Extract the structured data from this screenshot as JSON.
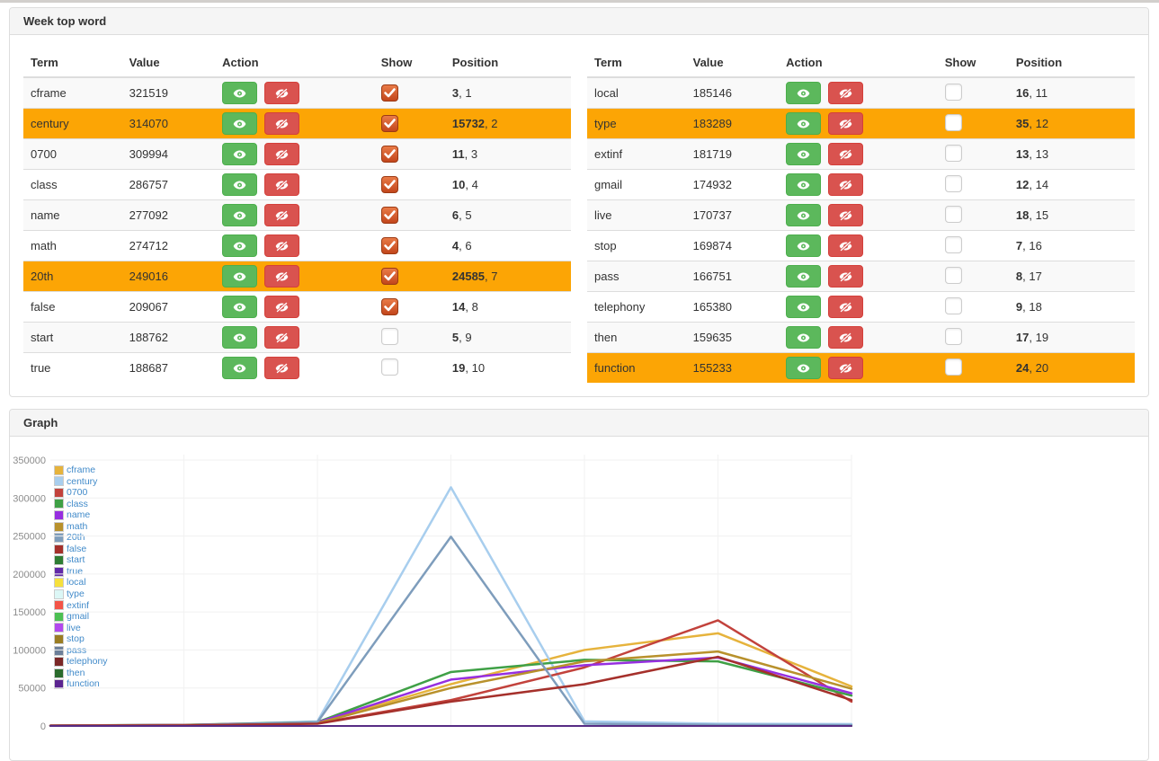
{
  "word_panel": {
    "title": "Week top word",
    "columns": {
      "term": "Term",
      "value": "Value",
      "action": "Action",
      "show": "Show",
      "position": "Position"
    },
    "highlight_color": "#fca505",
    "tables": [
      {
        "rows": [
          {
            "term": "cframe",
            "value": "321519",
            "checked": true,
            "highlight": false,
            "pos_bold": "3",
            "pos_rest": ", 1"
          },
          {
            "term": "century",
            "value": "314070",
            "checked": true,
            "highlight": true,
            "pos_bold": "15732",
            "pos_rest": ", 2"
          },
          {
            "term": "0700",
            "value": "309994",
            "checked": true,
            "highlight": false,
            "pos_bold": "11",
            "pos_rest": ", 3"
          },
          {
            "term": "class",
            "value": "286757",
            "checked": true,
            "highlight": false,
            "pos_bold": "10",
            "pos_rest": ", 4"
          },
          {
            "term": "name",
            "value": "277092",
            "checked": true,
            "highlight": false,
            "pos_bold": "6",
            "pos_rest": ", 5"
          },
          {
            "term": "math",
            "value": "274712",
            "checked": true,
            "highlight": false,
            "pos_bold": "4",
            "pos_rest": ", 6"
          },
          {
            "term": "20th",
            "value": "249016",
            "checked": true,
            "highlight": true,
            "pos_bold": "24585",
            "pos_rest": ", 7"
          },
          {
            "term": "false",
            "value": "209067",
            "checked": true,
            "highlight": false,
            "pos_bold": "14",
            "pos_rest": ", 8"
          },
          {
            "term": "start",
            "value": "188762",
            "checked": false,
            "highlight": false,
            "pos_bold": "5",
            "pos_rest": ", 9"
          },
          {
            "term": "true",
            "value": "188687",
            "checked": false,
            "highlight": false,
            "pos_bold": "19",
            "pos_rest": ", 10"
          }
        ]
      },
      {
        "rows": [
          {
            "term": "local",
            "value": "185146",
            "checked": false,
            "highlight": false,
            "pos_bold": "16",
            "pos_rest": ", 11"
          },
          {
            "term": "type",
            "value": "183289",
            "checked": false,
            "highlight": true,
            "pos_bold": "35",
            "pos_rest": ", 12"
          },
          {
            "term": "extinf",
            "value": "181719",
            "checked": false,
            "highlight": false,
            "pos_bold": "13",
            "pos_rest": ", 13"
          },
          {
            "term": "gmail",
            "value": "174932",
            "checked": false,
            "highlight": false,
            "pos_bold": "12",
            "pos_rest": ", 14"
          },
          {
            "term": "live",
            "value": "170737",
            "checked": false,
            "highlight": false,
            "pos_bold": "18",
            "pos_rest": ", 15"
          },
          {
            "term": "stop",
            "value": "169874",
            "checked": false,
            "highlight": false,
            "pos_bold": "7",
            "pos_rest": ", 16"
          },
          {
            "term": "pass",
            "value": "166751",
            "checked": false,
            "highlight": false,
            "pos_bold": "8",
            "pos_rest": ", 17"
          },
          {
            "term": "telephony",
            "value": "165380",
            "checked": false,
            "highlight": false,
            "pos_bold": "9",
            "pos_rest": ", 18"
          },
          {
            "term": "then",
            "value": "159635",
            "checked": false,
            "highlight": false,
            "pos_bold": "17",
            "pos_rest": ", 19"
          },
          {
            "term": "function",
            "value": "155233",
            "checked": false,
            "highlight": true,
            "pos_bold": "24",
            "pos_rest": ", 20"
          }
        ]
      }
    ]
  },
  "graph_panel": {
    "title": "Graph"
  },
  "chart_data": {
    "type": "line",
    "x": [
      1,
      2,
      3,
      4,
      5,
      6,
      7
    ],
    "x_tick_labels_visible": false,
    "ylim": [
      0,
      350000
    ],
    "y_ticks": [
      0,
      50000,
      100000,
      150000,
      200000,
      250000,
      300000,
      350000
    ],
    "grid": true,
    "legend_position": "top-left",
    "legend_text_color": "#428bca",
    "series": [
      {
        "name": "cframe",
        "color": "#e6b33c",
        "shown": true,
        "values": [
          500,
          1400,
          4200,
          55000,
          100000,
          122000,
          52000
        ]
      },
      {
        "name": "century",
        "color": "#a8ceee",
        "shown": true,
        "values": [
          400,
          900,
          6000,
          314070,
          6000,
          3000,
          2500
        ]
      },
      {
        "name": "0700",
        "color": "#c2423c",
        "shown": true,
        "values": [
          400,
          1000,
          3500,
          34000,
          77000,
          139000,
          32000
        ]
      },
      {
        "name": "class",
        "color": "#3fa046",
        "shown": true,
        "values": [
          500,
          1500,
          5000,
          71000,
          87000,
          85000,
          40000
        ]
      },
      {
        "name": "name",
        "color": "#962fe0",
        "shown": true,
        "values": [
          400,
          1300,
          4500,
          61000,
          80000,
          90000,
          43000
        ]
      },
      {
        "name": "math",
        "color": "#b8912c",
        "shown": true,
        "values": [
          400,
          1200,
          3800,
          50000,
          85000,
          98000,
          49000
        ]
      },
      {
        "name": "20th",
        "color": "#7e9dbc",
        "shown": true,
        "values": [
          300,
          700,
          5000,
          249016,
          3000,
          1500,
          1200
        ]
      },
      {
        "name": "false",
        "color": "#a5302b",
        "shown": true,
        "values": [
          300,
          800,
          3000,
          32000,
          55000,
          91000,
          34000
        ]
      },
      {
        "name": "start",
        "color": "#2e7d33",
        "shown": false,
        "values": [
          0,
          0,
          0,
          0,
          0,
          0,
          0
        ]
      },
      {
        "name": "true",
        "color": "#6229a8",
        "shown": false,
        "values": [
          0,
          0,
          0,
          0,
          0,
          0,
          0
        ]
      },
      {
        "name": "local",
        "color": "#f6e03c",
        "shown": false,
        "values": [
          0,
          0,
          0,
          0,
          0,
          0,
          0
        ]
      },
      {
        "name": "type",
        "color": "#dcf7f6",
        "shown": false,
        "values": [
          0,
          0,
          0,
          0,
          0,
          0,
          0
        ]
      },
      {
        "name": "extinf",
        "color": "#f35448",
        "shown": false,
        "values": [
          0,
          0,
          0,
          0,
          0,
          0,
          0
        ]
      },
      {
        "name": "gmail",
        "color": "#4cbf52",
        "shown": false,
        "values": [
          0,
          0,
          0,
          0,
          0,
          0,
          0
        ]
      },
      {
        "name": "live",
        "color": "#b248ee",
        "shown": false,
        "values": [
          0,
          0,
          0,
          0,
          0,
          0,
          0
        ]
      },
      {
        "name": "stop",
        "color": "#9a7d22",
        "shown": false,
        "values": [
          0,
          0,
          0,
          0,
          0,
          0,
          0
        ]
      },
      {
        "name": "pass",
        "color": "#6c7f99",
        "shown": false,
        "values": [
          0,
          0,
          0,
          0,
          0,
          0,
          0
        ]
      },
      {
        "name": "telephony",
        "color": "#7b2727",
        "shown": false,
        "values": [
          0,
          0,
          0,
          0,
          0,
          0,
          0
        ]
      },
      {
        "name": "then",
        "color": "#2a6b2c",
        "shown": false,
        "values": [
          0,
          0,
          0,
          0,
          0,
          0,
          0
        ]
      },
      {
        "name": "function",
        "color": "#5b2490",
        "shown": false,
        "values": [
          0,
          0,
          0,
          0,
          0,
          0,
          0
        ]
      }
    ]
  }
}
